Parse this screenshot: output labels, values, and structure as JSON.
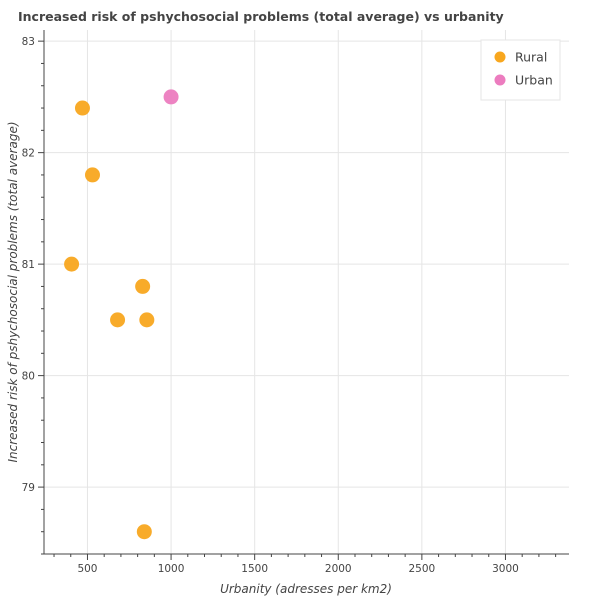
{
  "chart_data": {
    "type": "scatter",
    "title": "Increased risk of pshychosocial problems (total average) vs urbanity",
    "xlabel": "Urbanity (adresses per km2)",
    "ylabel": "Increased risk of pshychosocial problems (total average)",
    "xlim": [
      240,
      3380
    ],
    "ylim": [
      78.4,
      83.1
    ],
    "x_ticks": [
      500,
      1000,
      1500,
      2000,
      2500,
      3000
    ],
    "y_ticks": [
      79,
      80,
      81,
      82,
      83
    ],
    "grid": true,
    "legend_position": "top-right",
    "series": [
      {
        "name": "Rural",
        "color": "#f8a71f",
        "points": [
          {
            "x": 470,
            "y": 82.4
          },
          {
            "x": 530,
            "y": 81.8
          },
          {
            "x": 405,
            "y": 81.0
          },
          {
            "x": 830,
            "y": 80.8
          },
          {
            "x": 680,
            "y": 80.5
          },
          {
            "x": 855,
            "y": 80.5
          },
          {
            "x": 840,
            "y": 78.6
          }
        ]
      },
      {
        "name": "Urban",
        "color": "#ec7cbf",
        "points": [
          {
            "x": 1000,
            "y": 82.5
          }
        ]
      }
    ]
  }
}
